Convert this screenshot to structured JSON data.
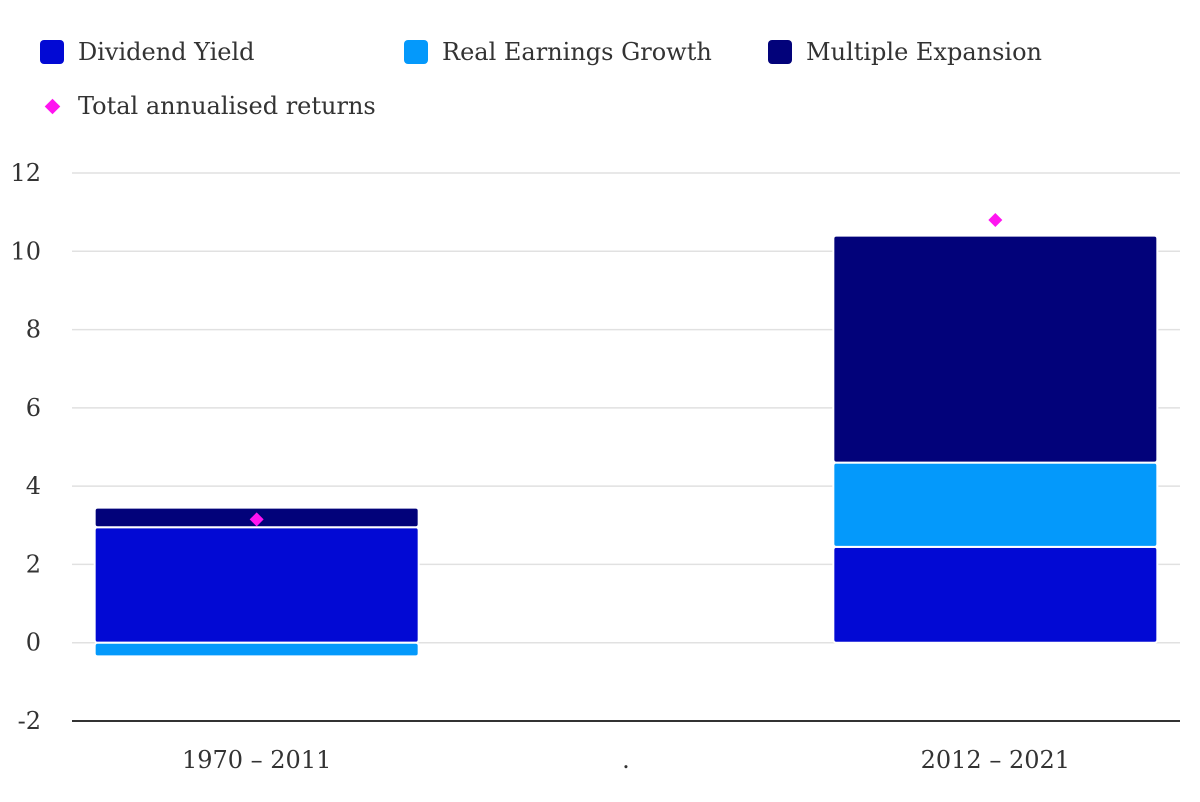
{
  "chart_data": {
    "type": "bar",
    "stacked": true,
    "categories": [
      "1970 – 2011",
      ".",
      "2012 – 2021"
    ],
    "series": [
      {
        "name": "Dividend Yield",
        "color": "#0209D4",
        "values": [
          2.95,
          null,
          2.45
        ]
      },
      {
        "name": "Real Earnings Growth",
        "color": "#0499FB",
        "values": [
          -0.35,
          null,
          2.15
        ]
      },
      {
        "name": "Multiple Expansion",
        "color": "#02027A",
        "values": [
          0.5,
          null,
          5.8
        ]
      }
    ],
    "overlay": {
      "name": "Total annualised returns",
      "type": "scatter",
      "marker": "diamond",
      "color": "#FF14F0",
      "values": [
        3.15,
        null,
        10.8
      ]
    },
    "yticks": [
      -2,
      0,
      2,
      4,
      6,
      8,
      10,
      12
    ],
    "ylim": [
      -2,
      12
    ],
    "grid": true,
    "legend_position": "top-left"
  }
}
